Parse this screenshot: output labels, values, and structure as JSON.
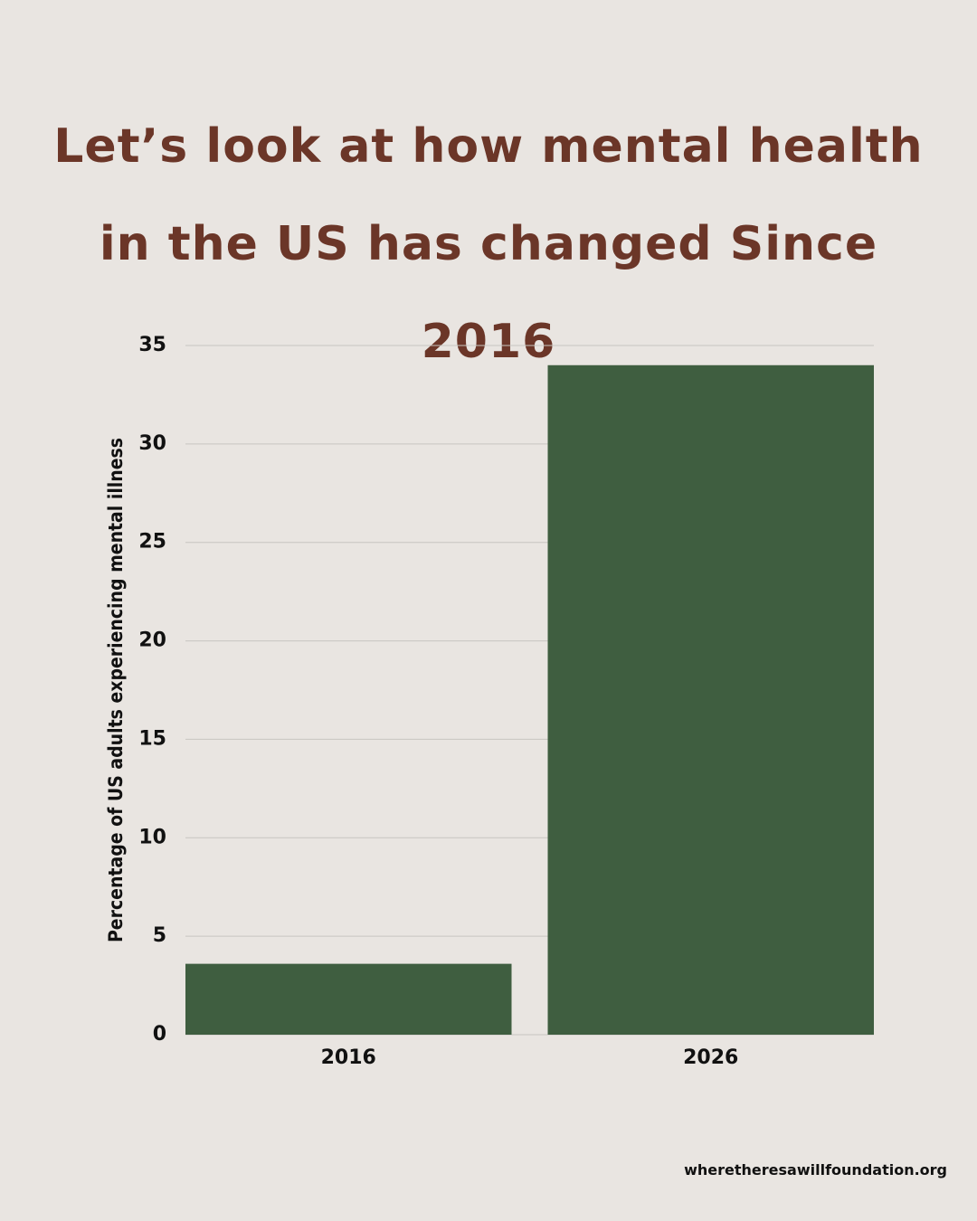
{
  "title": "Let’s look at how mental health in the US has changed Since 2016",
  "footer": "wheretheresawillfoundation.org",
  "colors": {
    "bar": "#3f5e40",
    "title": "#6b3628",
    "background": "#e9e5e1",
    "grid": "#c8c5c1"
  },
  "chart_data": {
    "type": "bar",
    "categories": [
      "2016",
      "2026"
    ],
    "values": [
      3.6,
      34
    ],
    "ylabel": "Percentage of US adults experiencing mental illness",
    "xlabel": "",
    "ylim": [
      0,
      35
    ],
    "yticks": [
      0,
      5,
      10,
      15,
      20,
      25,
      30,
      35
    ],
    "grid": true,
    "legend": "none"
  }
}
